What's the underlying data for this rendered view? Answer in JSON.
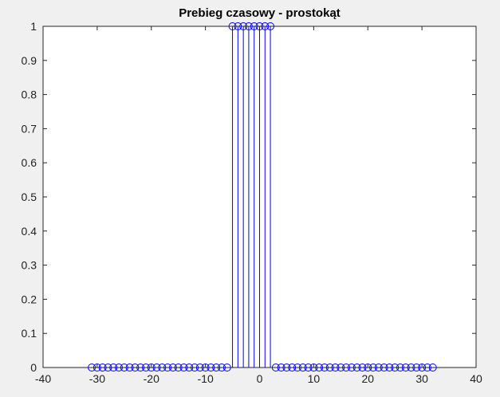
{
  "chart_data": {
    "type": "stem",
    "title": "Prebieg czasowy - prostokąt",
    "xlabel": "",
    "ylabel": "",
    "xlim": [
      -40,
      40
    ],
    "ylim": [
      0,
      1
    ],
    "xticks": [
      -40,
      -30,
      -20,
      -10,
      0,
      10,
      20,
      30,
      40
    ],
    "yticks": [
      0,
      0.1,
      0.2,
      0.3,
      0.4,
      0.5,
      0.6,
      0.7,
      0.8,
      0.9,
      1
    ],
    "xtick_labels": [
      "-40",
      "-30",
      "-20",
      "-10",
      "0",
      "10",
      "20",
      "30",
      "40"
    ],
    "ytick_labels": [
      "0",
      "0.1",
      "0.2",
      "0.3",
      "0.4",
      "0.5",
      "0.6",
      "0.7",
      "0.8",
      "0.9",
      "1"
    ],
    "grid": false,
    "series": [
      {
        "color": "#0000ff",
        "marker": "circle-open",
        "x": [
          -31,
          -30,
          -29,
          -28,
          -27,
          -26,
          -25,
          -24,
          -23,
          -22,
          -21,
          -20,
          -19,
          -18,
          -17,
          -16,
          -15,
          -14,
          -13,
          -12,
          -11,
          -10,
          -9,
          -8,
          -7,
          -6,
          -5,
          -4,
          -3,
          -2,
          -1,
          0,
          1,
          2,
          3,
          4,
          5,
          6,
          7,
          8,
          9,
          10,
          11,
          12,
          13,
          14,
          15,
          16,
          17,
          18,
          19,
          20,
          21,
          22,
          23,
          24,
          25,
          26,
          27,
          28,
          29,
          30,
          31,
          32
        ],
        "values": [
          0,
          0,
          0,
          0,
          0,
          0,
          0,
          0,
          0,
          0,
          0,
          0,
          0,
          0,
          0,
          0,
          0,
          0,
          0,
          0,
          0,
          0,
          0,
          0,
          0,
          0,
          1,
          1,
          1,
          1,
          1,
          1,
          1,
          1,
          0,
          0,
          0,
          0,
          0,
          0,
          0,
          0,
          0,
          0,
          0,
          0,
          0,
          0,
          0,
          0,
          0,
          0,
          0,
          0,
          0,
          0,
          0,
          0,
          0,
          0,
          0,
          0,
          0,
          0
        ]
      }
    ]
  },
  "colors": {
    "figure_bg": "#f0f0f0",
    "axes_bg": "#ffffff",
    "stem": "#0000ff"
  }
}
